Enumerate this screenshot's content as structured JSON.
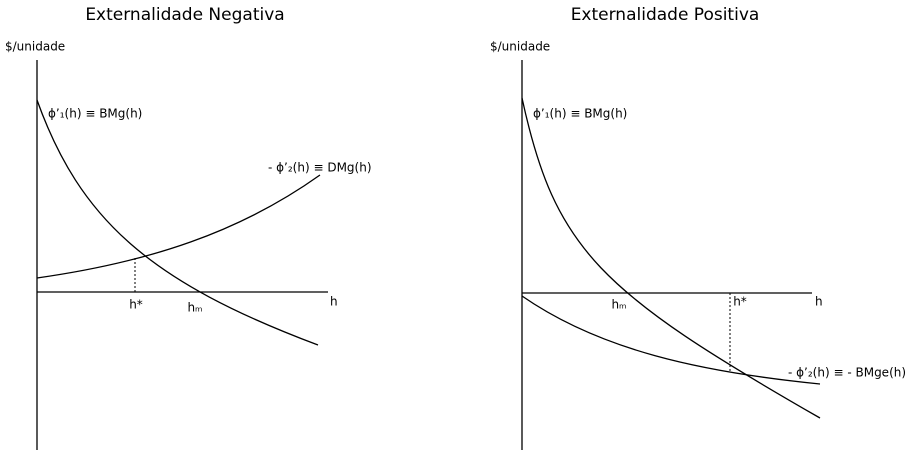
{
  "panels": [
    {
      "title": "Externalidade Negativa",
      "y_label": "$/unidade",
      "x_label": "h",
      "curve_labels": [
        "ϕ’₁(h) ≡ BMg(h)",
        "- ϕ’₂(h) ≡ DMg(h)"
      ],
      "point_labels": [
        "h*",
        "hₘ"
      ]
    },
    {
      "title": "Externalidade Positiva",
      "y_label": "$/unidade",
      "x_label": "h",
      "curve_labels": [
        "ϕ’₁(h) ≡ BMg(h)",
        "- ϕ’₂(h) ≡ - BMge(h)"
      ],
      "point_labels": [
        "hₘ",
        "h*"
      ]
    }
  ]
}
